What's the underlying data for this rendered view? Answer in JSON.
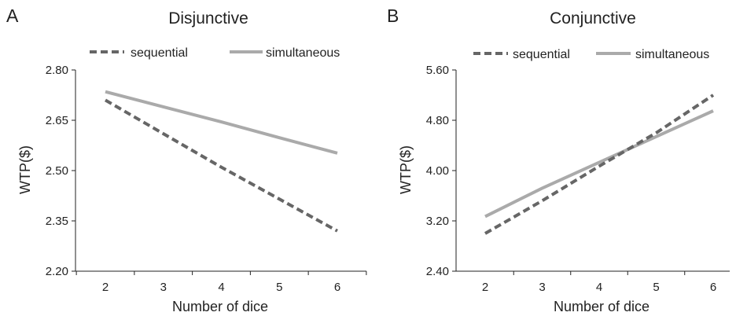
{
  "chart_data": [
    {
      "type": "line",
      "panel_label": "A",
      "title": "Disjunctive",
      "xlabel": "Number of dice",
      "ylabel": "WTP($)",
      "x": [
        2,
        3,
        4,
        5,
        6
      ],
      "x_tick_labels": [
        "2",
        "3",
        "4",
        "5",
        "6"
      ],
      "ylim": [
        2.2,
        2.8
      ],
      "y_ticks": [
        2.2,
        2.35,
        2.5,
        2.65,
        2.8
      ],
      "y_tick_labels": [
        "2.20",
        "2.35",
        "2.50",
        "2.65",
        "2.80"
      ],
      "grid": false,
      "legend_position": "top",
      "series": [
        {
          "name": "sequential",
          "style": "dashed",
          "color": "#666666",
          "values": [
            2.71,
            2.61,
            2.51,
            2.415,
            2.32
          ]
        },
        {
          "name": "simultaneous",
          "style": "solid",
          "color": "#aaaaaa",
          "values": [
            2.735,
            2.69,
            2.645,
            2.598,
            2.552
          ]
        }
      ]
    },
    {
      "type": "line",
      "panel_label": "B",
      "title": "Conjunctive",
      "xlabel": "Number of dice",
      "ylabel": "WTP($)",
      "x": [
        2,
        3,
        4,
        5,
        6
      ],
      "x_tick_labels": [
        "2",
        "3",
        "4",
        "5",
        "6"
      ],
      "ylim": [
        2.4,
        5.6
      ],
      "y_ticks": [
        2.4,
        3.2,
        4.0,
        4.8,
        5.6
      ],
      "y_tick_labels": [
        "2.40",
        "3.20",
        "4.00",
        "4.80",
        "5.60"
      ],
      "grid": false,
      "legend_position": "top",
      "series": [
        {
          "name": "sequential",
          "style": "dashed",
          "color": "#666666",
          "values": [
            3.0,
            3.52,
            4.07,
            4.6,
            5.2
          ]
        },
        {
          "name": "simultaneous",
          "style": "solid",
          "color": "#aaaaaa",
          "values": [
            3.27,
            3.72,
            4.13,
            4.54,
            4.95
          ]
        }
      ]
    }
  ]
}
